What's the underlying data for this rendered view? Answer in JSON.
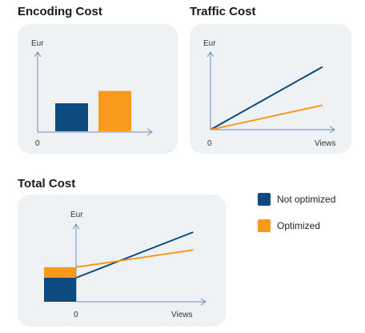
{
  "colors": {
    "not_optimized": "#0c4a7f",
    "optimized": "#f99a1f",
    "axis": "#6f8fae",
    "panel": "#eef2f5"
  },
  "legend": [
    {
      "label": "Not optimized",
      "color": "#0c4a7f"
    },
    {
      "label": "Optimized",
      "color": "#f99a1f"
    }
  ],
  "chart_data": [
    {
      "type": "bar",
      "title": "Encoding Cost",
      "ylabel": "Eur",
      "origin_label": "0",
      "series": [
        {
          "name": "Not optimized",
          "value": 0.5
        },
        {
          "name": "Optimized",
          "value": 0.72
        }
      ],
      "ylim": [
        0,
        1.4
      ],
      "legend": "separate (right of Total Cost)"
    },
    {
      "type": "line",
      "title": "Traffic Cost",
      "ylabel": "Eur",
      "xlabel": "Views",
      "origin_label": "0",
      "x": [
        0,
        1
      ],
      "series": [
        {
          "name": "Not optimized",
          "values": [
            0,
            0.9
          ]
        },
        {
          "name": "Optimized",
          "values": [
            0,
            0.35
          ]
        }
      ],
      "xlim": [
        0,
        1.1
      ],
      "ylim": [
        0,
        1.1
      ]
    },
    {
      "type": "line",
      "title": "Total Cost",
      "ylabel": "Eur",
      "xlabel": "Views",
      "origin_label": "0",
      "stacked_intercept_bar": [
        {
          "name": "Not optimized",
          "value": 0.5
        },
        {
          "name": "Optimized",
          "value": 0.72
        }
      ],
      "x": [
        0,
        1
      ],
      "series": [
        {
          "name": "Not optimized",
          "values": [
            0.5,
            1.45
          ]
        },
        {
          "name": "Optimized",
          "values": [
            0.72,
            1.08
          ]
        }
      ],
      "xlim": [
        0,
        1.1
      ],
      "ylim": [
        0,
        1.6
      ]
    }
  ]
}
